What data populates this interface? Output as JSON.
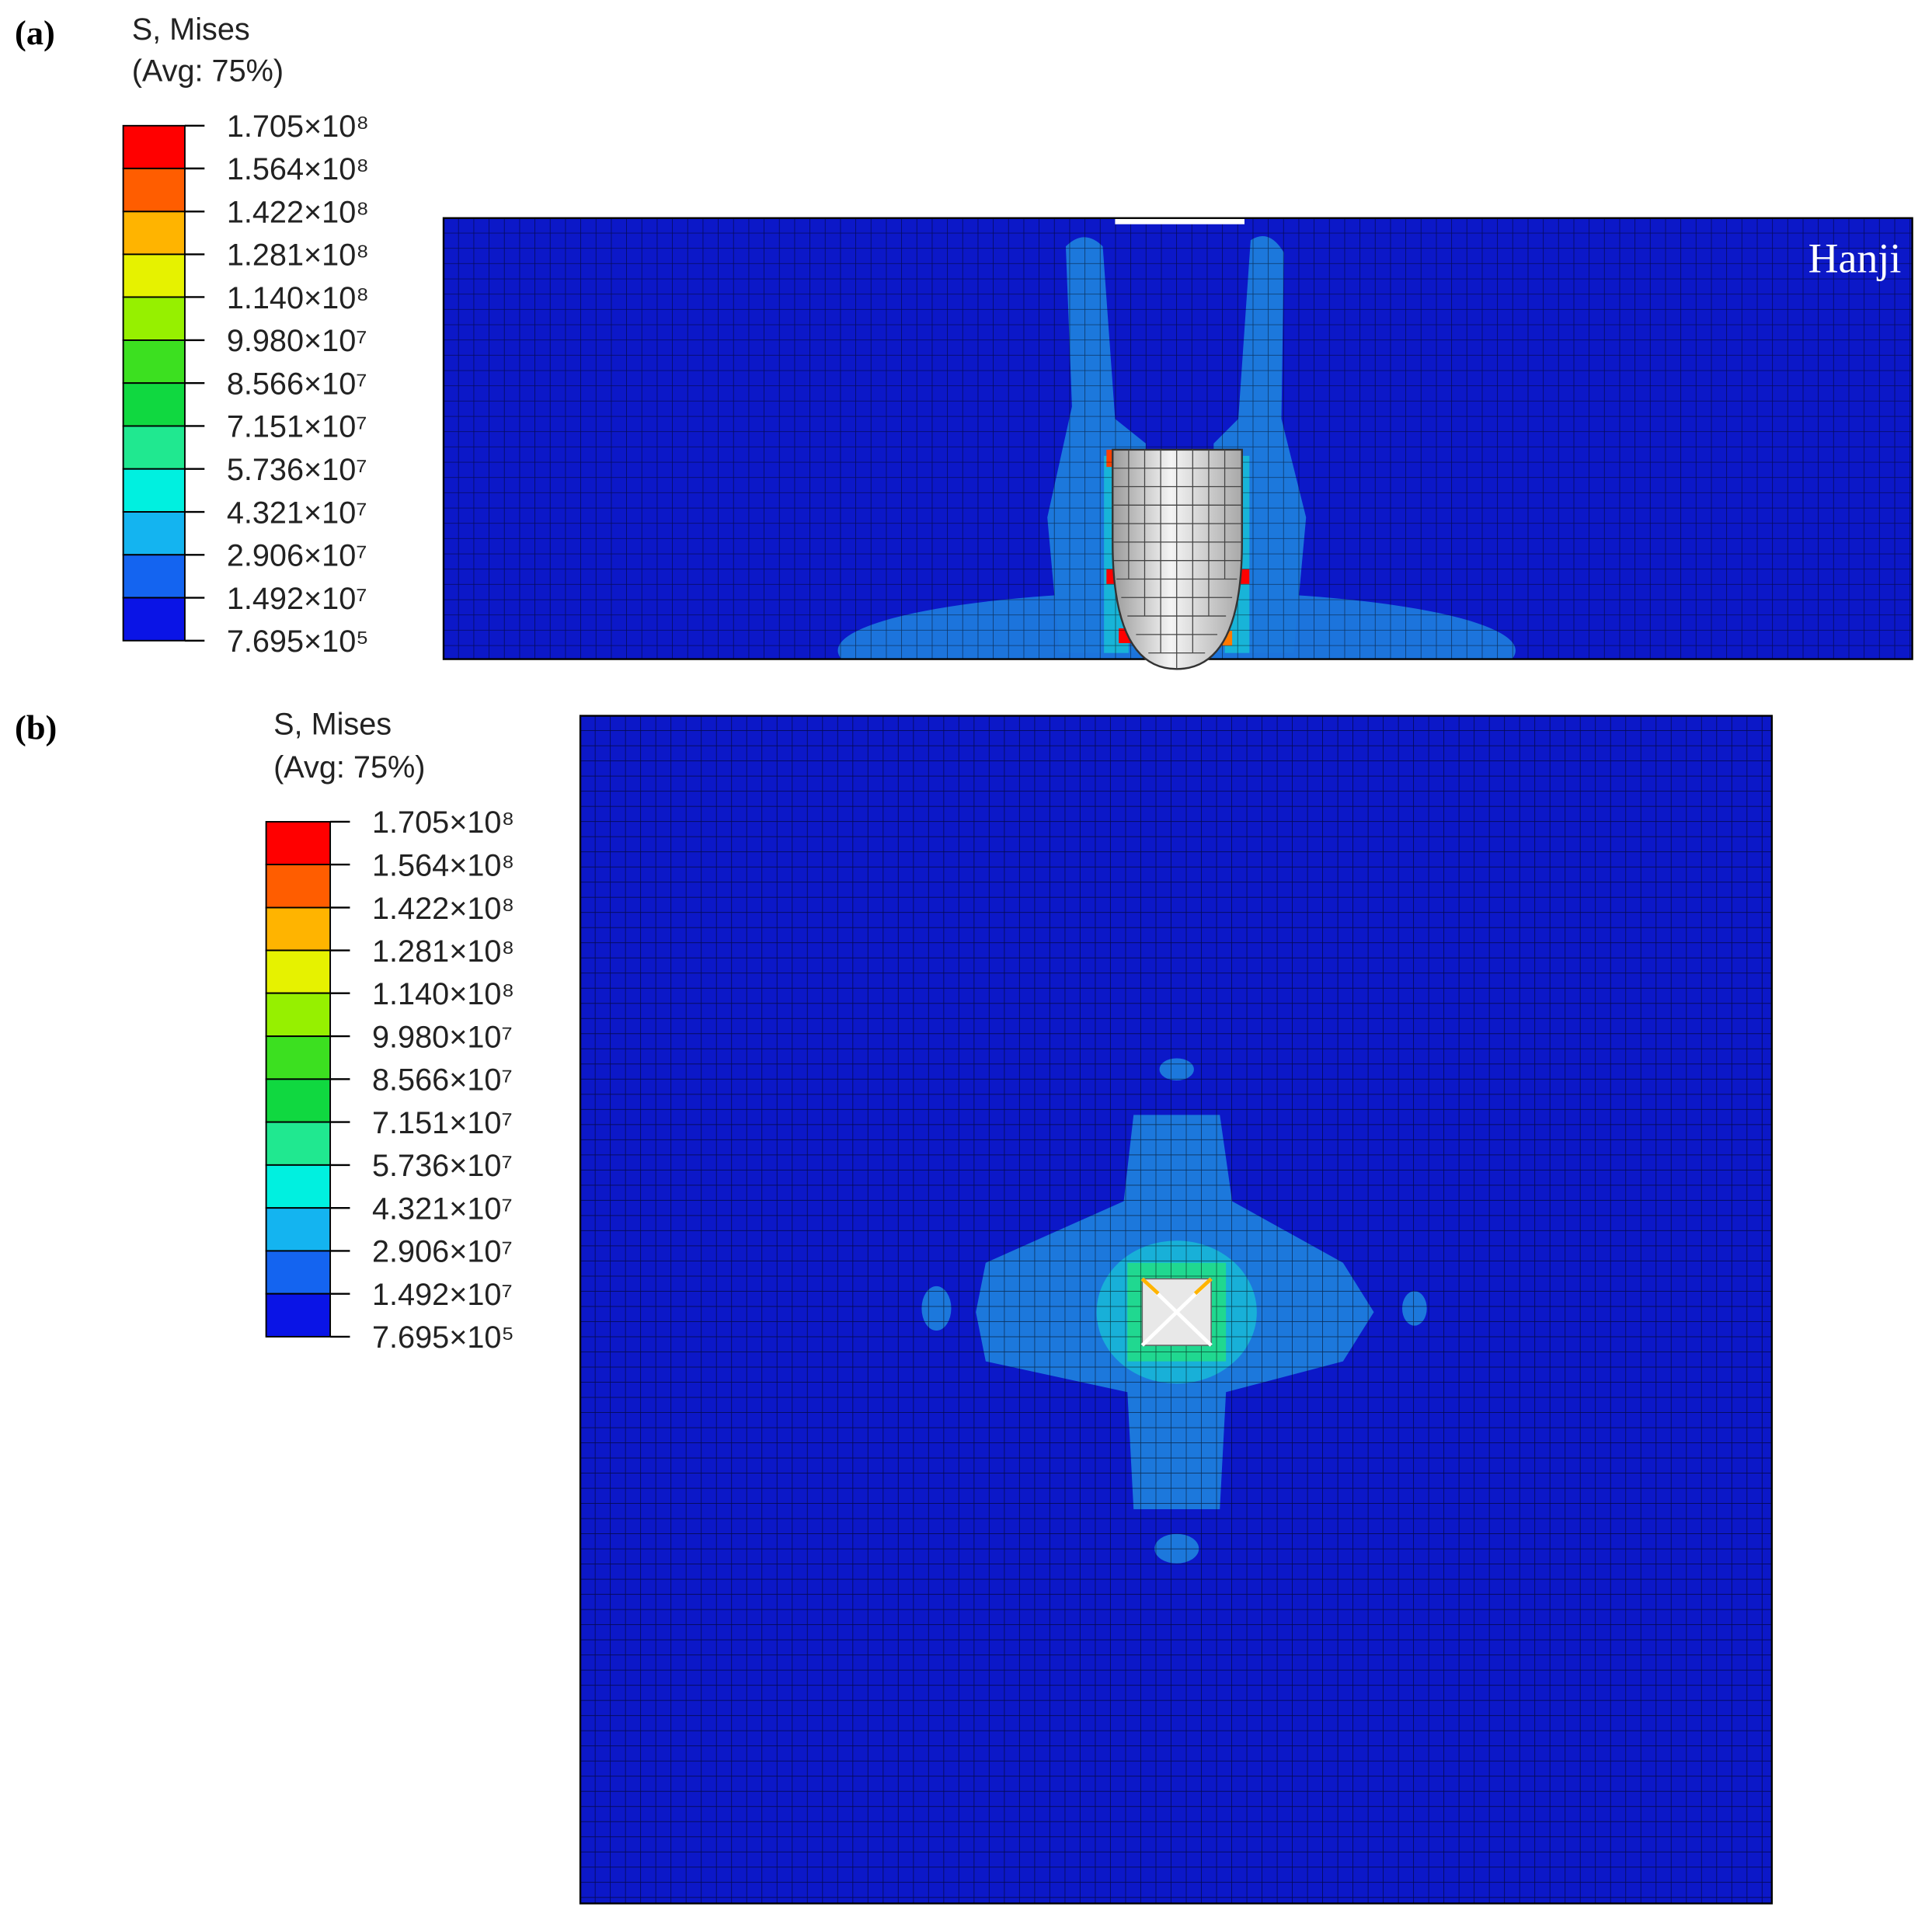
{
  "legend_colors": [
    "#ff0000",
    "#ff5d00",
    "#ffb400",
    "#e6f200",
    "#96f000",
    "#3ce020",
    "#10d840",
    "#20e890",
    "#00f0e0",
    "#14b4f0",
    "#1464f0",
    "#0a14e6"
  ],
  "panels": [
    {
      "label": "(a)",
      "legend": {
        "title": "S, Mises",
        "subtitle": "(Avg: 75%)",
        "ticks": [
          {
            "value": 170500000,
            "label": "1.705×10⁸"
          },
          {
            "value": 156400000,
            "label": "1.564×10⁸"
          },
          {
            "value": 142200000,
            "label": "1.422×10⁸"
          },
          {
            "value": 128100000,
            "label": "1.281×10⁸"
          },
          {
            "value": 114000000,
            "label": "1.140×10⁸"
          },
          {
            "value": 99800000,
            "label": "9.980×10⁷"
          },
          {
            "value": 85660000,
            "label": "8.566×10⁷"
          },
          {
            "value": 71510000,
            "label": "7.151×10⁷"
          },
          {
            "value": 57360000,
            "label": "5.736×10⁷"
          },
          {
            "value": 43210000,
            "label": "4.321×10⁷"
          },
          {
            "value": 29060000,
            "label": "2.906×10⁷"
          },
          {
            "value": 14920000,
            "label": "1.492×10⁷"
          },
          {
            "value": 769500,
            "label": "7.695×10⁵"
          }
        ]
      },
      "annotation": "Hanji"
    },
    {
      "label": "(b)",
      "legend": {
        "title": "S, Mises",
        "subtitle": "(Avg: 75%)",
        "ticks": [
          {
            "value": 170500000,
            "label": "1.705×10⁸"
          },
          {
            "value": 156400000,
            "label": "1.564×10⁸"
          },
          {
            "value": 142200000,
            "label": "1.422×10⁸"
          },
          {
            "value": 128100000,
            "label": "1.281×10⁸"
          },
          {
            "value": 114000000,
            "label": "1.140×10⁸"
          },
          {
            "value": 99800000,
            "label": "9.980×10⁷"
          },
          {
            "value": 85660000,
            "label": "8.566×10⁷"
          },
          {
            "value": 71510000,
            "label": "7.151×10⁷"
          },
          {
            "value": 57360000,
            "label": "5.736×10⁷"
          },
          {
            "value": 43210000,
            "label": "4.321×10⁷"
          },
          {
            "value": 29060000,
            "label": "2.906×10⁷"
          },
          {
            "value": 14920000,
            "label": "1.492×10⁷"
          },
          {
            "value": 769500,
            "label": "7.695×10⁵"
          }
        ]
      }
    }
  ]
}
